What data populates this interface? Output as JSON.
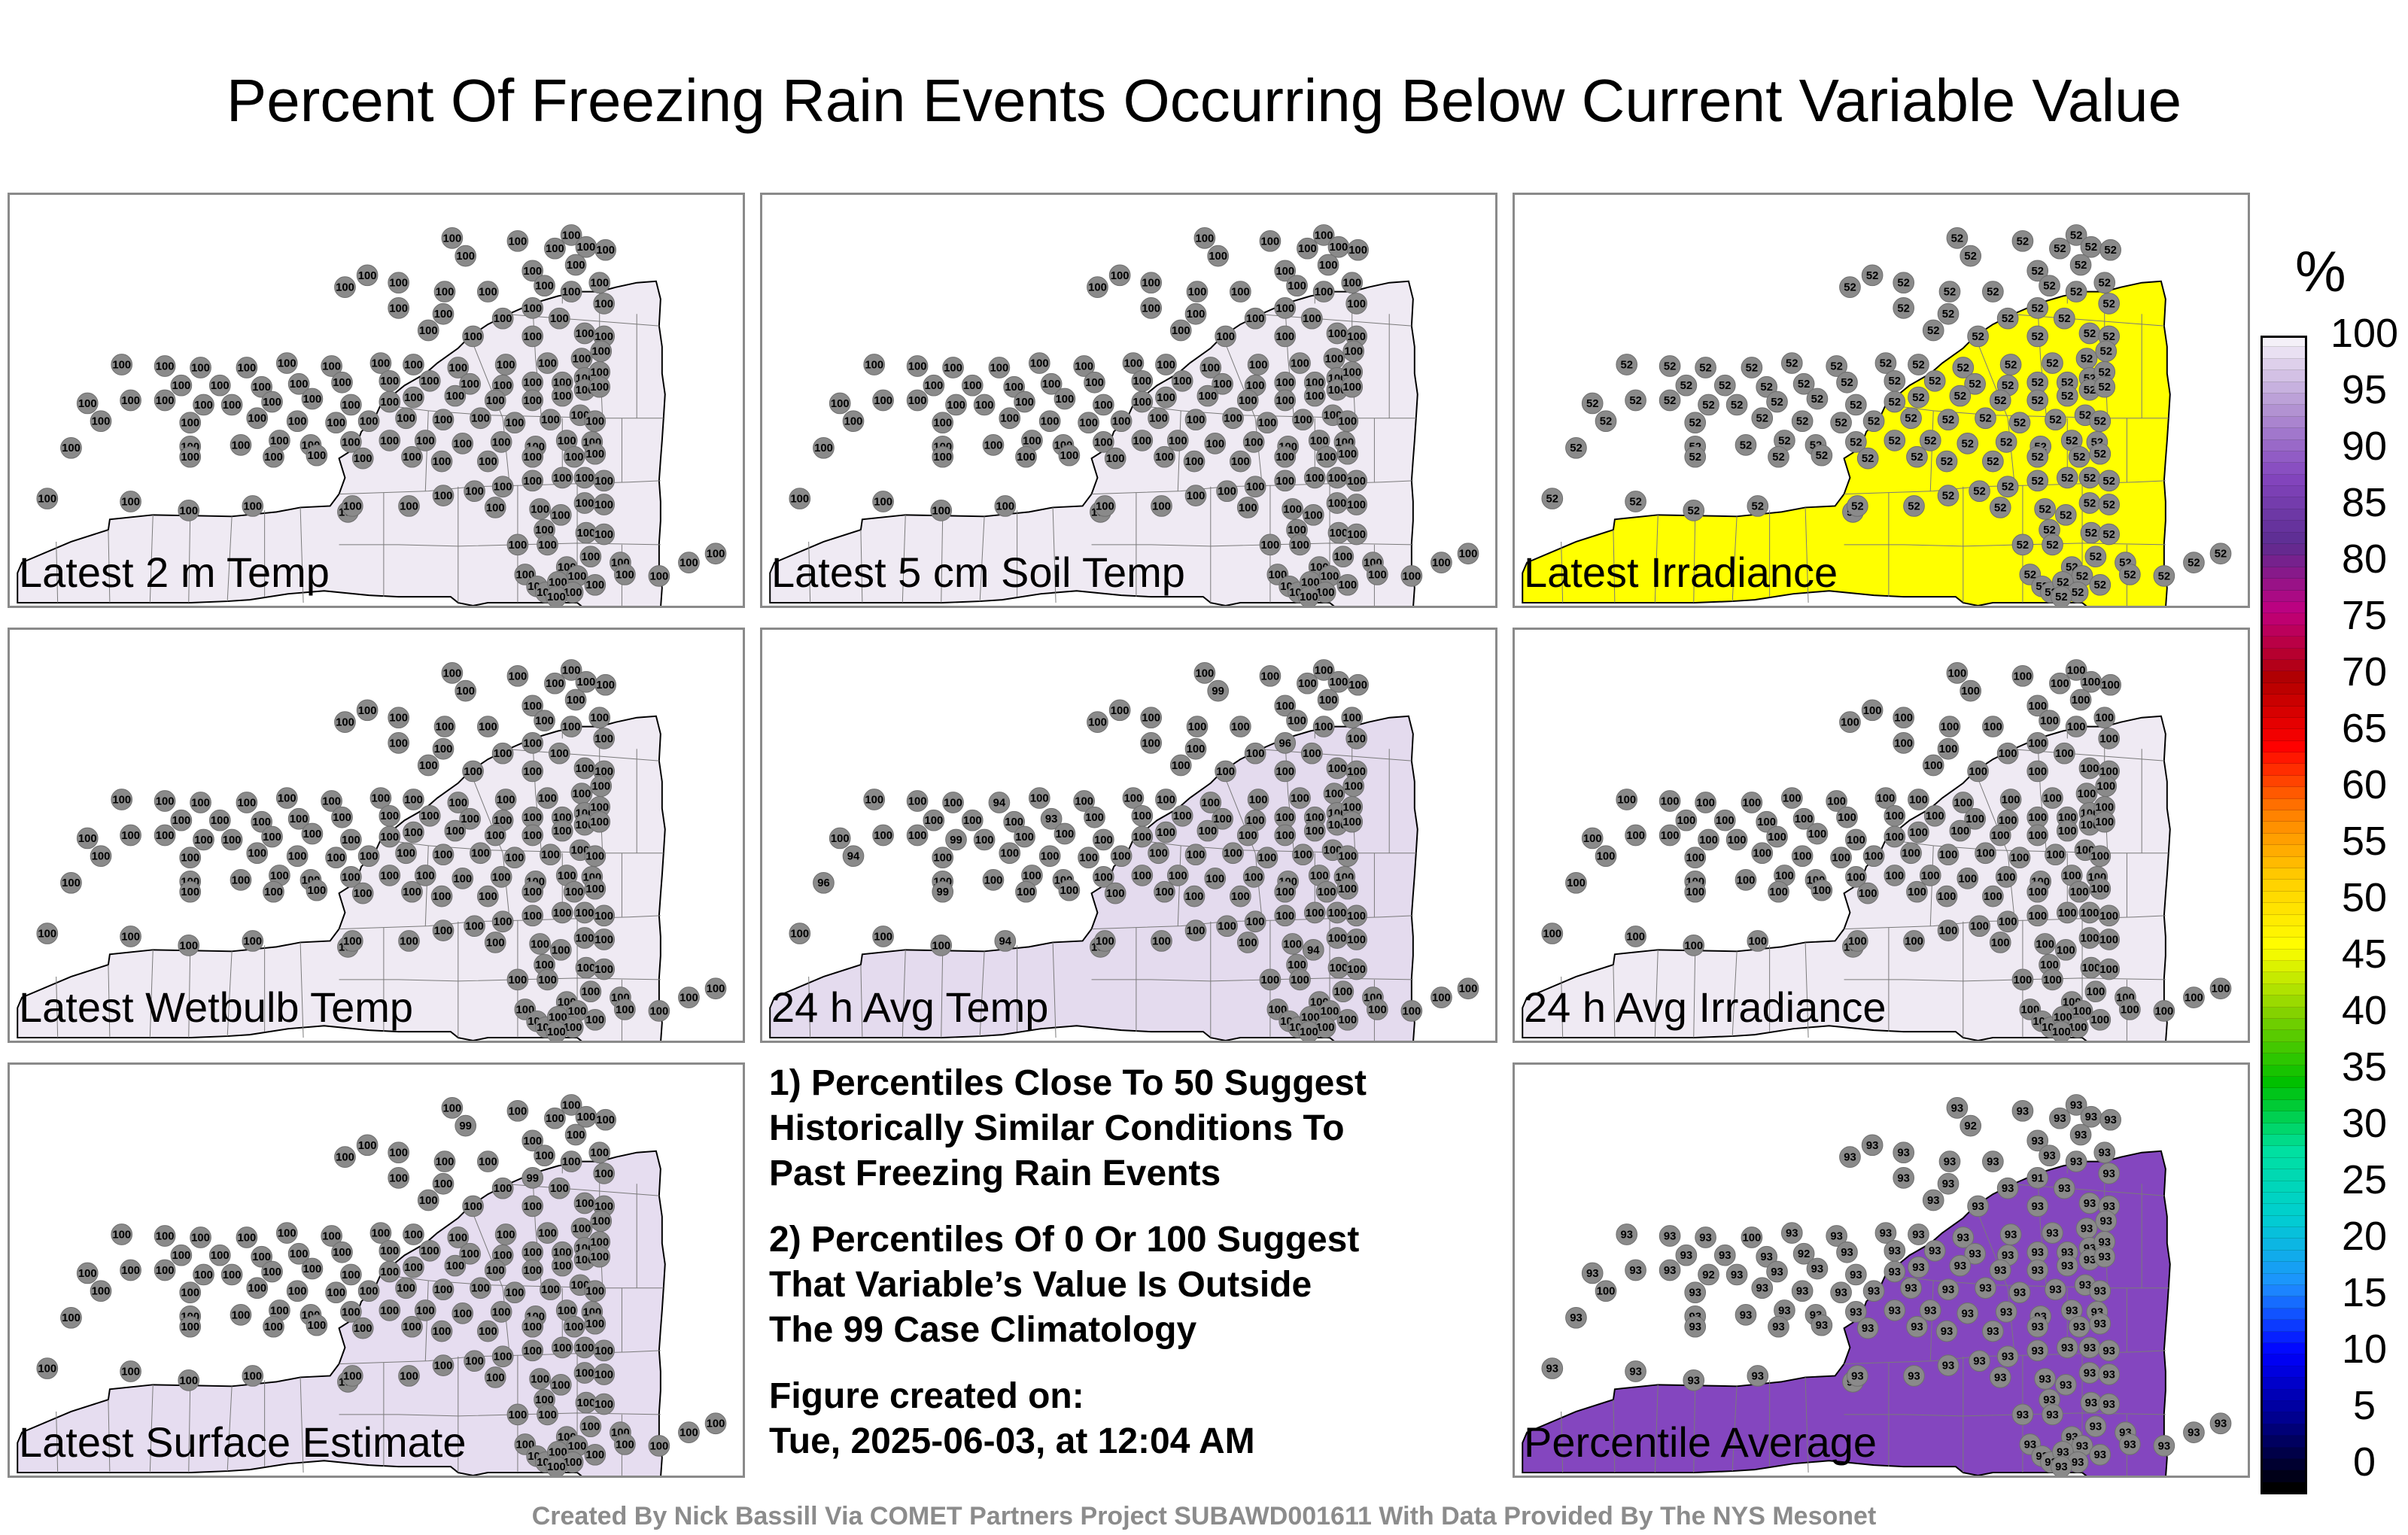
{
  "title": "Percent Of Freezing Rain Events Occurring Below Current Variable Value",
  "panels": [
    {
      "label": "Latest 2 m Temp",
      "fill": "#efeaf3",
      "value": "100",
      "odd_values": []
    },
    {
      "label": "Latest 5 cm Soil Temp",
      "fill": "#efeaf3",
      "value": "100",
      "odd_values": []
    },
    {
      "label": "Latest Irradiance",
      "fill": "#ffff00",
      "value": "52",
      "odd_values": []
    },
    {
      "label": "Latest Wetbulb Temp",
      "fill": "#efeaf3",
      "value": "100",
      "odd_values": []
    },
    {
      "label": "24 h Avg Temp",
      "fill": "#e4dbee",
      "value": "100",
      "odd_values": [
        "99",
        "96",
        "94",
        "93",
        "99",
        "94",
        "96",
        "99",
        "94",
        "94"
      ]
    },
    {
      "label": "24 h Avg Irradiance",
      "fill": "#efeaf3",
      "value": "100",
      "odd_values": []
    },
    {
      "label": "Latest Surface Estimate",
      "fill": "#e6ddf0",
      "value": "100",
      "odd_values": [
        "99",
        "99"
      ]
    },
    {
      "label": "Percentile Average",
      "fill": "#8446bf",
      "value": "93",
      "odd_values": [
        "92",
        "91",
        "100",
        "92",
        "92",
        "100"
      ]
    }
  ],
  "notes": [
    "1) Percentiles Close To 50 Suggest\nHistorically Similar Conditions To\nPast Freezing Rain Events",
    "2) Percentiles Of 0 Or 100 Suggest\nThat Variable’s Value Is Outside\nThe 99 Case Climatology",
    "Figure created on:\nTue, 2025-06-03, at 12:04 AM"
  ],
  "credit": "Created By Nick Bassill Via COMET Partners Project SUBAWD001611 With Data Provided By The NYS Mesonet",
  "colorbar": {
    "unit": "%",
    "ticks": [
      "100",
      "95",
      "90",
      "85",
      "80",
      "75",
      "70",
      "65",
      "60",
      "55",
      "50",
      "45",
      "40",
      "35",
      "30",
      "25",
      "20",
      "15",
      "10",
      "5",
      "0"
    ],
    "stops": [
      "#000000",
      "#00008b",
      "#0000ff",
      "#1e90ff",
      "#00ced1",
      "#00e0a0",
      "#00c000",
      "#7fd000",
      "#ffff00",
      "#ffd000",
      "#ff8000",
      "#ff0000",
      "#b00000",
      "#c00080",
      "#5c2d91",
      "#8446bf",
      "#b394d3",
      "#f4f0f8"
    ]
  }
}
